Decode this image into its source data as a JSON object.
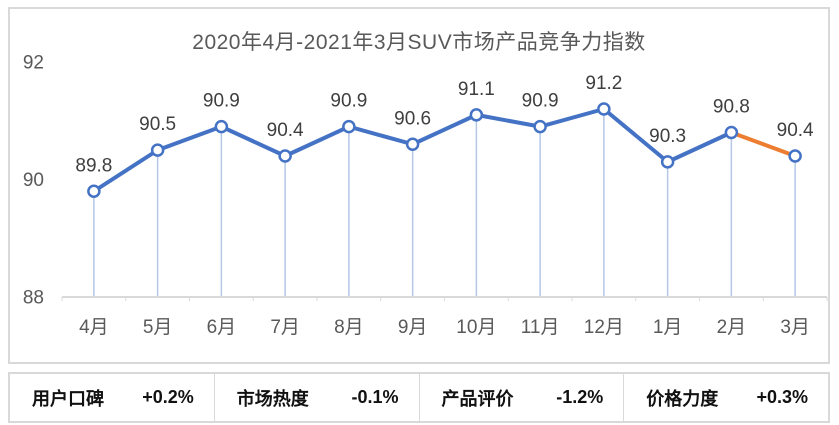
{
  "chart_data": {
    "type": "line",
    "title": "2020年4月-2021年3月SUV市场产品竞争力指数",
    "categories": [
      "4月",
      "5月",
      "6月",
      "7月",
      "8月",
      "9月",
      "10月",
      "11月",
      "12月",
      "1月",
      "2月",
      "3月"
    ],
    "values": [
      89.8,
      90.5,
      90.9,
      90.4,
      90.9,
      90.6,
      91.1,
      90.9,
      91.2,
      90.3,
      90.8,
      90.4
    ],
    "data_labels": [
      "89.8",
      "90.5",
      "90.9",
      "90.4",
      "90.9",
      "90.6",
      "91.1",
      "90.9",
      "91.2",
      "90.3",
      "90.8",
      "90.4"
    ],
    "ylim": [
      88,
      92
    ],
    "yticks": [
      "92",
      "90",
      "88"
    ],
    "ytick_values": [
      92,
      90,
      88
    ],
    "grid": false,
    "legend": false,
    "highlight_last_segment": true,
    "highlight_segment_index": 10,
    "colors": {
      "line": "#4472C4",
      "highlight": "#ED7D31",
      "marker_fill": "#FFFFFF",
      "marker_stroke": "#4472C4",
      "dropline": "#B4C7E7",
      "axis": "#D9D9D9",
      "tick_label": "#595959",
      "data_label": "#3F3F3F",
      "title": "#595959"
    }
  },
  "stats": {
    "items": [
      {
        "label": "用户口碑",
        "value": "+0.2%"
      },
      {
        "label": "市场热度",
        "value": "-0.1%"
      },
      {
        "label": "产品评价",
        "value": "-1.2%"
      },
      {
        "label": "价格力度",
        "value": "+0.3%"
      }
    ]
  }
}
